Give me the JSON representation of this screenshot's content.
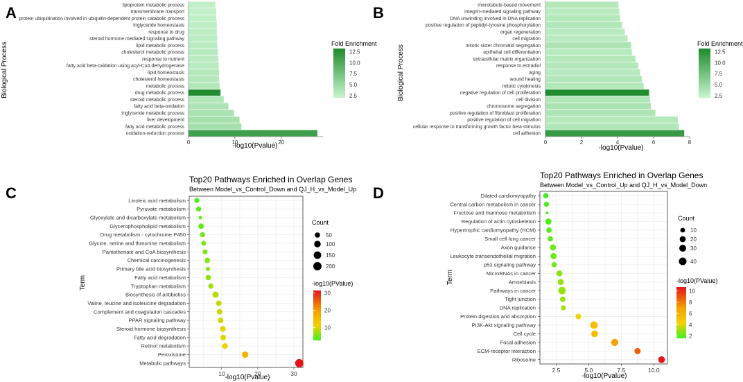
{
  "chart_data": [
    {
      "panel": "A",
      "type": "bar",
      "orientation": "horizontal",
      "title": "",
      "xlabel": "-log10(Pvalue)",
      "ylabel": "Biological Process",
      "xlim": [
        0,
        29
      ],
      "xticks": [
        0,
        10,
        20
      ],
      "categories": [
        "lipoprotein metabolic process",
        "transmembrane transport",
        "protein ubiquitination involved in ubiquitin-dependent protein catabolic process",
        "triglyceride homeostasis",
        "response to drug",
        "steroid hormone mediated signaling pathway",
        "lipid metabolic process",
        "cholesterol metabolic process",
        "response to nutrient",
        "fatty acid beta-oxidation using acyl-CoA dehydrogenase",
        "lipid homeostasis",
        "cholesterol homeostasis",
        "metabolic process",
        "drug metabolic process",
        "steroid metabolic process",
        "fatty acid beta-oxidation",
        "triglyceride metabolic process",
        "liver development",
        "fatty acid metabolic process",
        "oxidation-reduction process"
      ],
      "values": [
        5.8,
        6.0,
        6.0,
        6.1,
        6.1,
        6.2,
        6.2,
        6.3,
        6.4,
        6.5,
        6.6,
        6.6,
        6.7,
        6.9,
        7.6,
        8.6,
        9.8,
        11.0,
        11.4,
        27.8
      ],
      "fold_enrichment": [
        2.5,
        2.5,
        2.6,
        2.7,
        2.8,
        2.9,
        3.0,
        3.1,
        3.0,
        3.2,
        3.3,
        3.4,
        3.5,
        13.0,
        3.6,
        3.8,
        4.0,
        4.2,
        4.3,
        11.0
      ],
      "legend": {
        "title": "Fold Enrichment",
        "ticks": [
          "12.5",
          "10.0",
          "7.5",
          "5.0",
          "2.5"
        ],
        "tick_values": [
          12.5,
          10.0,
          7.5,
          5.0,
          2.5
        ],
        "range": [
          2.0,
          13.2
        ],
        "position": "right"
      }
    },
    {
      "panel": "B",
      "type": "bar",
      "orientation": "horizontal",
      "title": "",
      "xlabel": "-log10(Pvalue)",
      "ylabel": "Biological Process",
      "xlim": [
        0,
        8
      ],
      "xticks": [
        0,
        2,
        4,
        6,
        8
      ],
      "categories": [
        "microtubule-based movement",
        "integrin-mediated signaling pathway",
        "DNA unwinding involved in DNA replication",
        "positive regulation of peptidyl-tyrosine phosphorylation",
        "organ regeneration",
        "cell migration",
        "mitotic sister chromatid segregation",
        "epithelial cell differentiation",
        "extracellular matrix organization",
        "response to estradiol",
        "aging",
        "wound healing",
        "mitotic cytokinesis",
        "negative regulation of cell proliferation",
        "cell division",
        "chromosome segregation",
        "positive regulation of fibroblast proliferation",
        "positive regulation of cell migration",
        "cellular response to transforming growth factor beta stimulus",
        "cell adhesion"
      ],
      "values": [
        4.05,
        4.1,
        4.15,
        4.25,
        4.4,
        4.55,
        4.75,
        4.8,
        5.0,
        5.15,
        5.25,
        5.35,
        5.45,
        5.75,
        5.8,
        5.85,
        6.1,
        7.35,
        7.4,
        7.7
      ],
      "fold_enrichment": [
        3.4,
        3.0,
        3.3,
        3.5,
        3.2,
        3.0,
        3.8,
        3.1,
        3.3,
        3.4,
        3.2,
        3.5,
        3.4,
        13.0,
        3.6,
        3.9,
        3.7,
        3.3,
        3.5,
        11.5
      ],
      "legend": {
        "title": "Fold Enrichment",
        "ticks": [
          "12.5",
          "10.0",
          "7.5",
          "5.0",
          "2.5"
        ],
        "tick_values": [
          12.5,
          10.0,
          7.5,
          5.0,
          2.5
        ],
        "range": [
          2.0,
          13.2
        ],
        "position": "right"
      }
    },
    {
      "panel": "C",
      "type": "scatter",
      "title": "Top20 Pathways Enriched in Overlap Genes",
      "subtitle": "Between Model_vs_Control_Down and QJ_H_vs_Model_Up",
      "xlabel": "-log10(Pvalue)",
      "ylabel": "Term",
      "xlim": [
        1,
        32.5
      ],
      "xticks": [
        10,
        20,
        30
      ],
      "categories": [
        "Linoleic acid metabolism",
        "Pyruvate metabolism",
        "Glyoxylate and dicarboxylate metabolism",
        "Glycerophospholipid metabolism",
        "Drug metabolism - cytochrome P450",
        "Glycine, serine and threonine metabolism",
        "Pantothenate and CoA biosynthesis",
        "Chemical carcinogenesis",
        "Primary bile acid biosynthesis",
        "Fatty acid metabolism",
        "Tryptophan metabolism",
        "Biosynthesis of antibiotics",
        "Valine, leucine and isoleucine degradation",
        "Complement and coagulation cascades",
        "PPAR signaling pathway",
        "Steroid hormone biosynthesis",
        "Fatty acid degradation",
        "Retinol metabolism",
        "Peroxisome",
        "Metabolic pathways"
      ],
      "x": [
        3.1,
        3.6,
        4.1,
        4.3,
        4.7,
        5.0,
        5.4,
        6.0,
        6.2,
        6.3,
        7.0,
        8.3,
        9.2,
        9.4,
        9.7,
        10.3,
        10.4,
        10.9,
        16.5,
        31.5
      ],
      "count": [
        45,
        45,
        25,
        55,
        45,
        40,
        40,
        60,
        30,
        55,
        50,
        85,
        60,
        60,
        60,
        65,
        60,
        65,
        90,
        205
      ],
      "legend": {
        "size_title": "Count",
        "size_ticks": [
          "50",
          "100",
          "150",
          "200"
        ],
        "size_values": [
          50,
          100,
          150,
          200
        ],
        "color_title": "-log10(PValue)",
        "color_ticks": [
          "30",
          "20",
          "10"
        ],
        "color_values": [
          30,
          20,
          10
        ],
        "color_range": [
          2.5,
          31.5
        ],
        "position": "right"
      }
    },
    {
      "panel": "D",
      "type": "scatter",
      "title": "Top20 Pathways Enriched in Overlap Genes",
      "subtitle": "Between Model_vs_Control_Up and QJ_H_vs_Model_Down",
      "xlabel": "-log10(Pvalue)",
      "ylabel": "Term",
      "xlim": [
        1.25,
        11.05
      ],
      "xticks": [
        2.5,
        5.0,
        7.5,
        10.0
      ],
      "xtick_labels": [
        "2.5",
        "5.0",
        "7.5",
        "10.0"
      ],
      "categories": [
        "Dilated cardiomyopathy",
        "Central carbon metabolism in cancer",
        "Fructose and mannose metabolism",
        "Regulation of actin cytoskeleton",
        "Hypertrophic cardiomyopathy (HCM)",
        "Small cell lung cancer",
        "Axon guidance",
        "Leukocyte transendothelial migration",
        "p53 signaling pathway",
        "MicroRNAs in cancer",
        "Amoebiasis",
        "Pathways in cancer",
        "Tight junction",
        "DNA replication",
        "Protein digestion and absorption",
        "PI3K-Akt signaling pathway",
        "Cell cycle",
        "Focal adhesion",
        "ECM-receptor interaction",
        "Ribosome"
      ],
      "x": [
        1.7,
        1.75,
        1.8,
        1.9,
        1.95,
        2.05,
        2.25,
        2.3,
        2.35,
        2.75,
        2.85,
        2.95,
        3.0,
        3.05,
        4.2,
        5.4,
        5.45,
        7.0,
        8.75,
        10.6
      ],
      "count": [
        14,
        12,
        4,
        22,
        15,
        14,
        22,
        22,
        14,
        20,
        20,
        38,
        16,
        12,
        16,
        36,
        28,
        32,
        22,
        28
      ],
      "legend": {
        "size_title": "Count",
        "size_ticks": [
          "10",
          "20",
          "30",
          "40"
        ],
        "size_values": [
          10,
          20,
          30,
          40
        ],
        "color_title": "-log10(PValue)",
        "color_ticks": [
          "10",
          "8",
          "6",
          "4",
          "2"
        ],
        "color_values": [
          10,
          8,
          6,
          4,
          2
        ],
        "color_range": [
          1.6,
          10.7
        ],
        "position": "right"
      }
    }
  ],
  "panel_labels": [
    "A",
    "B",
    "C",
    "D"
  ],
  "colors": {
    "bar_low": "#c9f5cf",
    "bar_high": "#1e8a2c",
    "dot_low": "#3df21f",
    "dot_mid": "#f5d000",
    "dot_midhigh": "#f4a000",
    "dot_high": "#e4131b",
    "grid": "#ebebeb",
    "text": "#333333"
  }
}
